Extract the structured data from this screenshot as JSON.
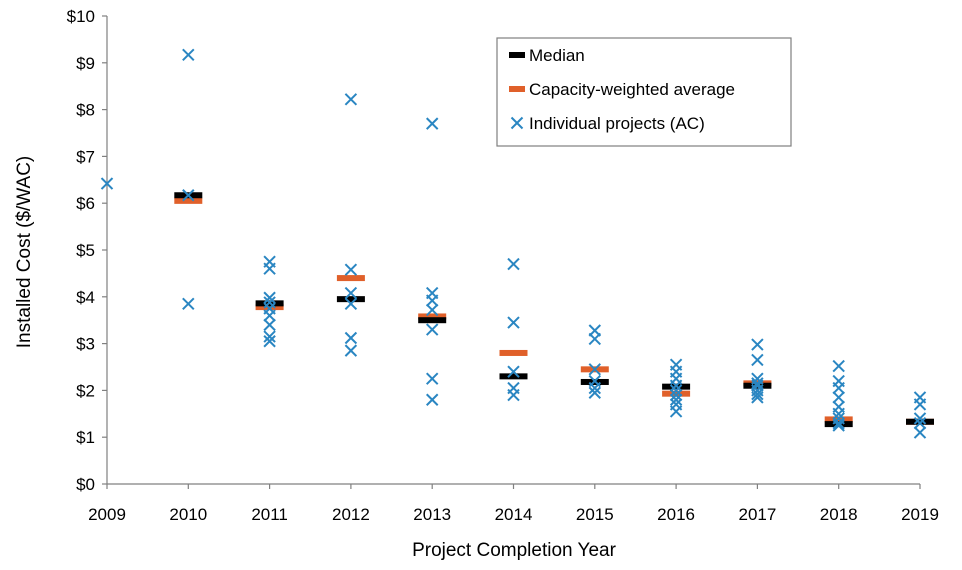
{
  "chart_data": {
    "type": "scatter",
    "xlabel": "Project Completion Year",
    "ylabel": "Installed Cost ($/WAC)",
    "xlim": [
      2009,
      2019
    ],
    "ylim": [
      0,
      10
    ],
    "x_ticks": [
      "2009",
      "2010",
      "2011",
      "2012",
      "2013",
      "2014",
      "2015",
      "2016",
      "2017",
      "2018",
      "2019"
    ],
    "y_ticks": [
      "$0",
      "$1",
      "$2",
      "$3",
      "$4",
      "$5",
      "$6",
      "$7",
      "$8",
      "$9",
      "$10"
    ],
    "grid": false,
    "legend_position": "top-right",
    "legend": [
      {
        "key": "median",
        "label": "Median"
      },
      {
        "key": "weighted",
        "label": "Capacity-weighted average"
      },
      {
        "key": "individual",
        "label": "Individual projects (AC)"
      }
    ],
    "colors": {
      "median": "#000000",
      "weighted": "#e0602a",
      "individual": "#2a86c2",
      "axis": "#808080"
    },
    "series": [
      {
        "name": "Median",
        "marker": "bar",
        "points": [
          {
            "x": 2010,
            "y": 6.17
          },
          {
            "x": 2011,
            "y": 3.86
          },
          {
            "x": 2012,
            "y": 3.95
          },
          {
            "x": 2013,
            "y": 3.5
          },
          {
            "x": 2014,
            "y": 2.3
          },
          {
            "x": 2015,
            "y": 2.18
          },
          {
            "x": 2016,
            "y": 2.08
          },
          {
            "x": 2017,
            "y": 2.1
          },
          {
            "x": 2018,
            "y": 1.28
          },
          {
            "x": 2019,
            "y": 1.33
          }
        ]
      },
      {
        "name": "Capacity-weighted average",
        "marker": "bar",
        "points": [
          {
            "x": 2010,
            "y": 6.05
          },
          {
            "x": 2011,
            "y": 3.78
          },
          {
            "x": 2012,
            "y": 4.4
          },
          {
            "x": 2013,
            "y": 3.58
          },
          {
            "x": 2014,
            "y": 2.8
          },
          {
            "x": 2015,
            "y": 2.45
          },
          {
            "x": 2016,
            "y": 1.93
          },
          {
            "x": 2017,
            "y": 2.15
          },
          {
            "x": 2018,
            "y": 1.38
          },
          {
            "x": 2019,
            "y": 1.33
          }
        ]
      },
      {
        "name": "Individual projects (AC)",
        "marker": "x",
        "points": [
          {
            "x": 2009,
            "y": 6.42
          },
          {
            "x": 2010,
            "y": 9.17
          },
          {
            "x": 2010,
            "y": 6.17
          },
          {
            "x": 2010,
            "y": 3.85
          },
          {
            "x": 2011,
            "y": 4.75
          },
          {
            "x": 2011,
            "y": 4.6
          },
          {
            "x": 2011,
            "y": 3.98
          },
          {
            "x": 2011,
            "y": 3.88
          },
          {
            "x": 2011,
            "y": 3.75
          },
          {
            "x": 2011,
            "y": 3.6
          },
          {
            "x": 2011,
            "y": 3.4
          },
          {
            "x": 2011,
            "y": 3.15
          },
          {
            "x": 2011,
            "y": 3.05
          },
          {
            "x": 2012,
            "y": 8.22
          },
          {
            "x": 2012,
            "y": 4.58
          },
          {
            "x": 2012,
            "y": 4.08
          },
          {
            "x": 2012,
            "y": 3.85
          },
          {
            "x": 2012,
            "y": 3.12
          },
          {
            "x": 2012,
            "y": 2.85
          },
          {
            "x": 2013,
            "y": 7.7
          },
          {
            "x": 2013,
            "y": 4.08
          },
          {
            "x": 2013,
            "y": 3.92
          },
          {
            "x": 2013,
            "y": 3.72
          },
          {
            "x": 2013,
            "y": 3.3
          },
          {
            "x": 2013,
            "y": 2.25
          },
          {
            "x": 2013,
            "y": 1.8
          },
          {
            "x": 2014,
            "y": 4.7
          },
          {
            "x": 2014,
            "y": 3.45
          },
          {
            "x": 2014,
            "y": 2.4
          },
          {
            "x": 2014,
            "y": 2.05
          },
          {
            "x": 2014,
            "y": 1.9
          },
          {
            "x": 2015,
            "y": 3.28
          },
          {
            "x": 2015,
            "y": 3.1
          },
          {
            "x": 2015,
            "y": 2.45
          },
          {
            "x": 2015,
            "y": 2.2
          },
          {
            "x": 2015,
            "y": 2.05
          },
          {
            "x": 2015,
            "y": 1.95
          },
          {
            "x": 2016,
            "y": 2.55
          },
          {
            "x": 2016,
            "y": 2.4
          },
          {
            "x": 2016,
            "y": 2.25
          },
          {
            "x": 2016,
            "y": 2.1
          },
          {
            "x": 2016,
            "y": 2.0
          },
          {
            "x": 2016,
            "y": 1.9
          },
          {
            "x": 2016,
            "y": 1.8
          },
          {
            "x": 2016,
            "y": 1.7
          },
          {
            "x": 2016,
            "y": 1.55
          },
          {
            "x": 2017,
            "y": 2.98
          },
          {
            "x": 2017,
            "y": 2.65
          },
          {
            "x": 2017,
            "y": 2.25
          },
          {
            "x": 2017,
            "y": 2.15
          },
          {
            "x": 2017,
            "y": 2.1
          },
          {
            "x": 2017,
            "y": 2.0
          },
          {
            "x": 2017,
            "y": 1.92
          },
          {
            "x": 2017,
            "y": 1.85
          },
          {
            "x": 2018,
            "y": 2.52
          },
          {
            "x": 2018,
            "y": 2.2
          },
          {
            "x": 2018,
            "y": 2.05
          },
          {
            "x": 2018,
            "y": 1.85
          },
          {
            "x": 2018,
            "y": 1.65
          },
          {
            "x": 2018,
            "y": 1.5
          },
          {
            "x": 2018,
            "y": 1.4
          },
          {
            "x": 2018,
            "y": 1.3
          },
          {
            "x": 2018,
            "y": 1.25
          },
          {
            "x": 2019,
            "y": 1.85
          },
          {
            "x": 2019,
            "y": 1.7
          },
          {
            "x": 2019,
            "y": 1.4
          },
          {
            "x": 2019,
            "y": 1.3
          },
          {
            "x": 2019,
            "y": 1.1
          }
        ]
      }
    ]
  }
}
